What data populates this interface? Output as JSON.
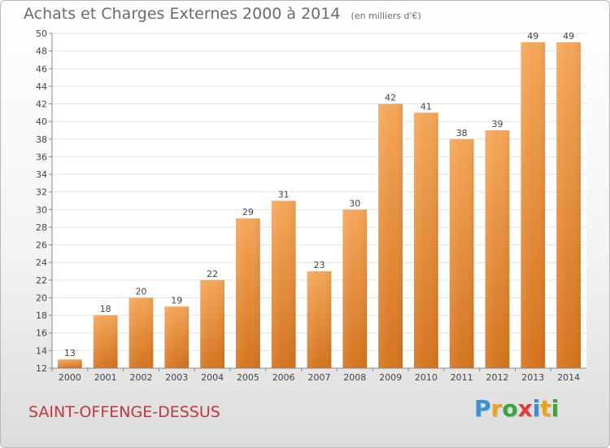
{
  "header": {
    "title": "Achats et Charges Externes 2000 à 2014",
    "subtitle": "(en milliers d'€)"
  },
  "footer": {
    "commune": "SAINT-OFFENGE-DESSUS",
    "logo": [
      "P",
      "r",
      "o",
      "x",
      "i",
      "t",
      "i"
    ],
    "logo_colors": [
      "#3a8fd6",
      "#e8a317",
      "#3aa63a",
      "#e23b3b",
      "#3a8fd6",
      "#e8a317",
      "#3aa63a"
    ]
  },
  "chart_data": {
    "type": "bar",
    "title": "Achats et Charges Externes 2000 à 2014",
    "subtitle": "(en milliers d'€)",
    "categories": [
      "2000",
      "2001",
      "2002",
      "2003",
      "2004",
      "2005",
      "2006",
      "2007",
      "2008",
      "2009",
      "2010",
      "2011",
      "2012",
      "2013",
      "2014"
    ],
    "values": [
      13,
      18,
      20,
      19,
      22,
      29,
      31,
      23,
      30,
      42,
      41,
      38,
      39,
      49,
      49
    ],
    "ylim": [
      12,
      50
    ],
    "yticks": [
      12,
      14,
      16,
      18,
      20,
      22,
      24,
      26,
      28,
      30,
      32,
      34,
      36,
      38,
      40,
      42,
      44,
      46,
      48,
      50
    ],
    "grid": true,
    "bar_color_top": "#f5a658",
    "bar_color_bottom": "#d4741e",
    "xlabel": "",
    "ylabel": ""
  }
}
